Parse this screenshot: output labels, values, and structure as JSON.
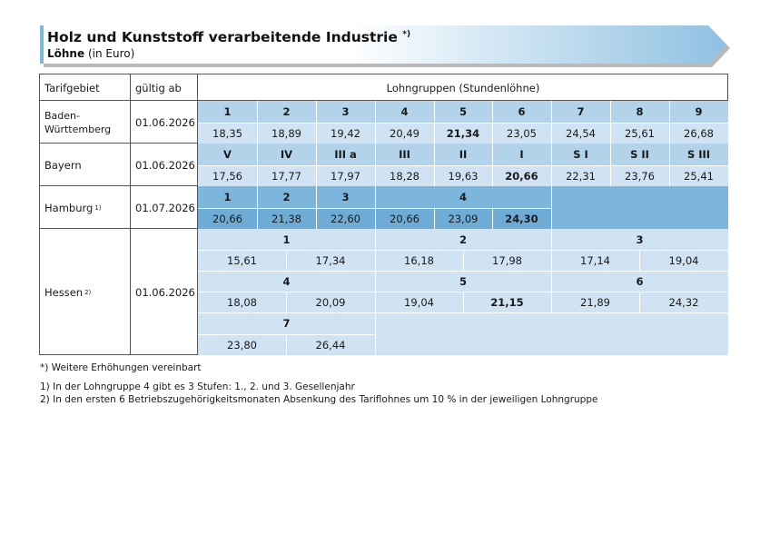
{
  "header": {
    "title": "Holz und Kunststoff verarbeitende Industrie",
    "title_mark": "*)",
    "subtitle_bold": "Löhne",
    "subtitle_rest": "(in Euro)"
  },
  "table": {
    "col_tarifgebiet": "Tarifgebiet",
    "col_gueltig": "gültig ab",
    "col_lohngruppen": "Lohngruppen (Stundenlöhne)",
    "bw": {
      "name_line1": "Baden-",
      "name_line2": "Württemberg",
      "date": "01.06.2026",
      "groups": [
        "1",
        "2",
        "3",
        "4",
        "5",
        "6",
        "7",
        "8",
        "9"
      ],
      "values": [
        "18,35",
        "18,89",
        "19,42",
        "20,49",
        "21,34",
        "23,05",
        "24,54",
        "25,61",
        "26,68"
      ]
    },
    "by": {
      "name": "Bayern",
      "date": "01.06.2026",
      "groups": [
        "V",
        "IV",
        "III a",
        "III",
        "II",
        "I",
        "S I",
        "S II",
        "S III"
      ],
      "values": [
        "17,56",
        "17,77",
        "17,97",
        "18,28",
        "19,63",
        "20,66",
        "22,31",
        "23,76",
        "25,41"
      ]
    },
    "hh": {
      "name": "Hamburg",
      "name_mark": "1)",
      "date": "01.07.2026",
      "groups": [
        "1",
        "2",
        "3",
        "4"
      ],
      "values": [
        "20,66",
        "21,38",
        "22,60",
        "20,66",
        "23,09",
        "24,30"
      ]
    },
    "he": {
      "name": "Hessen",
      "name_mark": "2)",
      "date": "01.06.2026",
      "groups": [
        "1",
        "2",
        "3",
        "4",
        "5",
        "6",
        "7"
      ],
      "values": [
        "15,61",
        "17,34",
        "16,18",
        "17,98",
        "17,14",
        "19,04",
        "18,08",
        "20,09",
        "19,04",
        "21,15",
        "21,89",
        "24,32",
        "23,80",
        "26,44"
      ]
    }
  },
  "notes": {
    "star": "*)  Weitere Erhöhungen vereinbart",
    "n1": "1)   In der Lohngruppe 4 gibt es 3 Stufen: 1., 2. und 3. Gesellenjahr",
    "n2": "2)   In den ersten 6 Betriebszugehörigkeitsmonaten Absenkung des Tariflohnes um 10 % in der jeweiligen Lohngruppe"
  },
  "colors": {
    "banner_light": "#ffffff",
    "banner_dark": "#8fc1e2",
    "header_cell": "#b3d3ea",
    "light_cell": "#cfe3f2",
    "hamburg_cell": "#7db6dc"
  }
}
